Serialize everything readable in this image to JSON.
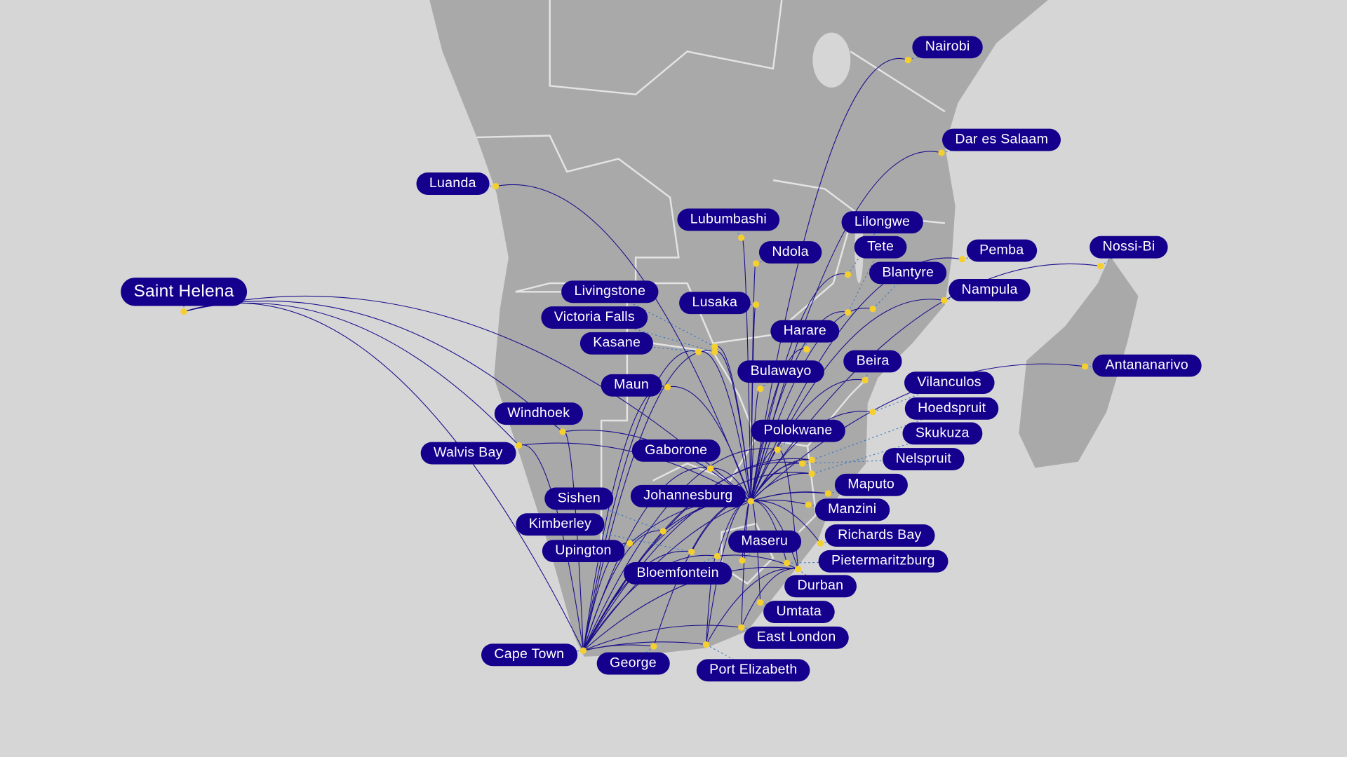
{
  "colors": {
    "background": "#d6d6d6",
    "land": "#a9a9a9",
    "border": "#e6e6e6",
    "label_bg": "#14008c",
    "label_text": "#ffffff",
    "dot": "#f5cf2e",
    "route": "#1a0f8c",
    "leader": "#3a78c0"
  },
  "cities": [
    "Nairobi",
    "Dar es Salaam",
    "Luanda",
    "Lubumbashi",
    "Lilongwe",
    "Ndola",
    "Tete",
    "Blantyre",
    "Pemba",
    "Nampula",
    "Nossi-Bi",
    "Antananarivo",
    "Saint Helena",
    "Livingstone",
    "Victoria Falls",
    "Kasane",
    "Lusaka",
    "Harare",
    "Bulawayo",
    "Beira",
    "Maun",
    "Vilanculos",
    "Hoedspruit",
    "Skukuza",
    "Nelspruit",
    "Windhoek",
    "Walvis Bay",
    "Gaborone",
    "Polokwane",
    "Johannesburg",
    "Maputo",
    "Manzini",
    "Sishen",
    "Kimberley",
    "Upington",
    "Bloemfontein",
    "Maseru",
    "Richards Bay",
    "Pietermaritzburg",
    "Durban",
    "Umtata",
    "East London",
    "Port Elizabeth",
    "George",
    "Cape Town"
  ],
  "routes": {
    "Johannesburg": [
      "Nairobi",
      "Dar es Salaam",
      "Luanda",
      "Lubumbashi",
      "Lilongwe",
      "Ndola",
      "Tete",
      "Blantyre",
      "Pemba",
      "Nampula",
      "Nossi-Bi",
      "Antananarivo",
      "Livingstone",
      "Victoria Falls",
      "Kasane",
      "Lusaka",
      "Harare",
      "Bulawayo",
      "Beira",
      "Maun",
      "Vilanculos",
      "Hoedspruit",
      "Skukuza",
      "Nelspruit",
      "Windhoek",
      "Walvis Bay",
      "Gaborone",
      "Polokwane",
      "Maputo",
      "Manzini",
      "Sishen",
      "Kimberley",
      "Upington",
      "Bloemfontein",
      "Maseru",
      "Richards Bay",
      "Pietermaritzburg",
      "Durban",
      "Umtata",
      "East London",
      "Port Elizabeth",
      "George",
      "Cape Town"
    ],
    "Cape Town": [
      "Windhoek",
      "Walvis Bay",
      "Sishen",
      "Kimberley",
      "Upington",
      "Bloemfontein",
      "Gaborone",
      "Maun",
      "Kasane",
      "Hoedspruit",
      "Skukuza",
      "Nelspruit",
      "Polokwane",
      "Durban",
      "East London",
      "Port Elizabeth",
      "George",
      "Maputo",
      "Victoria Falls"
    ],
    "Saint Helena": [
      "Johannesburg",
      "Cape Town",
      "Windhoek",
      "Walvis Bay"
    ],
    "Durban": [
      "Port Elizabeth",
      "East London",
      "Bloemfontein",
      "Polokwane"
    ],
    "Port Elizabeth": [
      "Bloemfontein"
    ]
  }
}
